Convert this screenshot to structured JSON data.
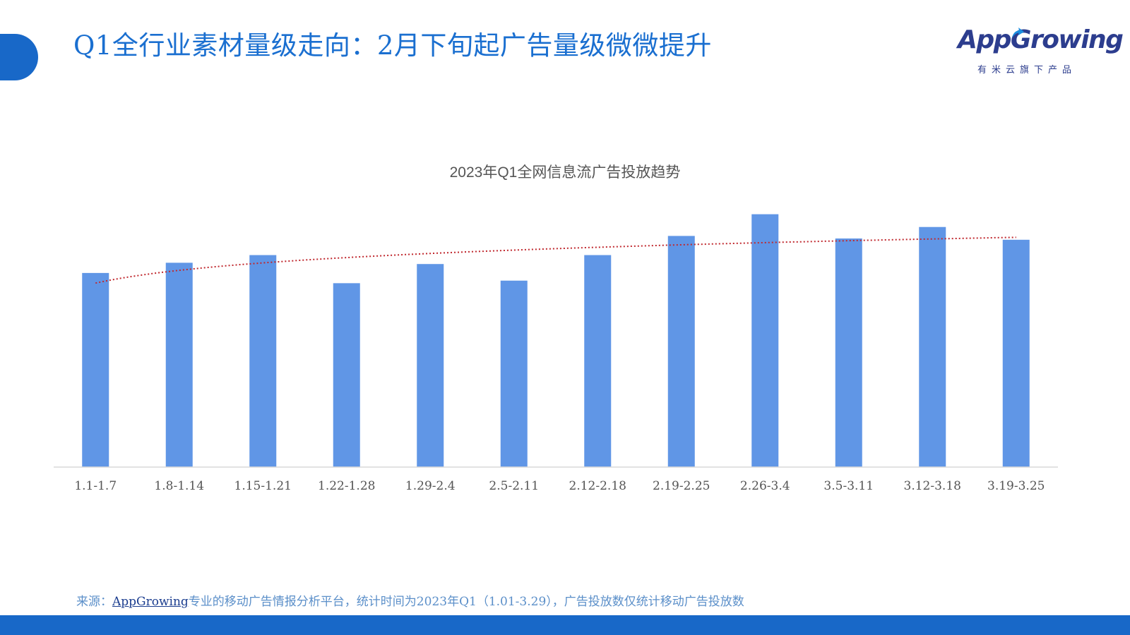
{
  "header": {
    "title": "Q1全行业素材量级走向：2月下旬起广告量级微微提升"
  },
  "logo": {
    "wordmark": "AppGrowing",
    "tagline": "有米云旗下产品",
    "accent_color": "#1a8ee0",
    "text_color": "#2c3d8e"
  },
  "chart_data": {
    "type": "bar",
    "title": "2023年Q1全网信息流广告投放趋势",
    "categories": [
      "1.1-1.7",
      "1.8-1.14",
      "1.15-1.21",
      "1.22-1.28",
      "1.29-2.4",
      "2.5-2.11",
      "2.12-2.18",
      "2.19-2.25",
      "2.26-3.4",
      "3.5-3.11",
      "3.12-3.18",
      "3.19-3.25"
    ],
    "values": [
      76,
      80,
      83,
      72,
      79.5,
      73,
      83,
      90.5,
      99,
      89.5,
      94,
      89
    ],
    "ylim": [
      0,
      100
    ],
    "trendline": {
      "type": "log",
      "style": "dotted",
      "color": "#c0282e"
    },
    "bar_color": "#6096e6",
    "grid": false,
    "legend": "none"
  },
  "footer": {
    "source_prefix": "来源：",
    "source_link": "AppGrowing",
    "source_rest": "专业的移动广告情报分析平台，统计时间为2023年Q1（1.01-3.29），广告投放数仅统计移动广告投放数"
  }
}
